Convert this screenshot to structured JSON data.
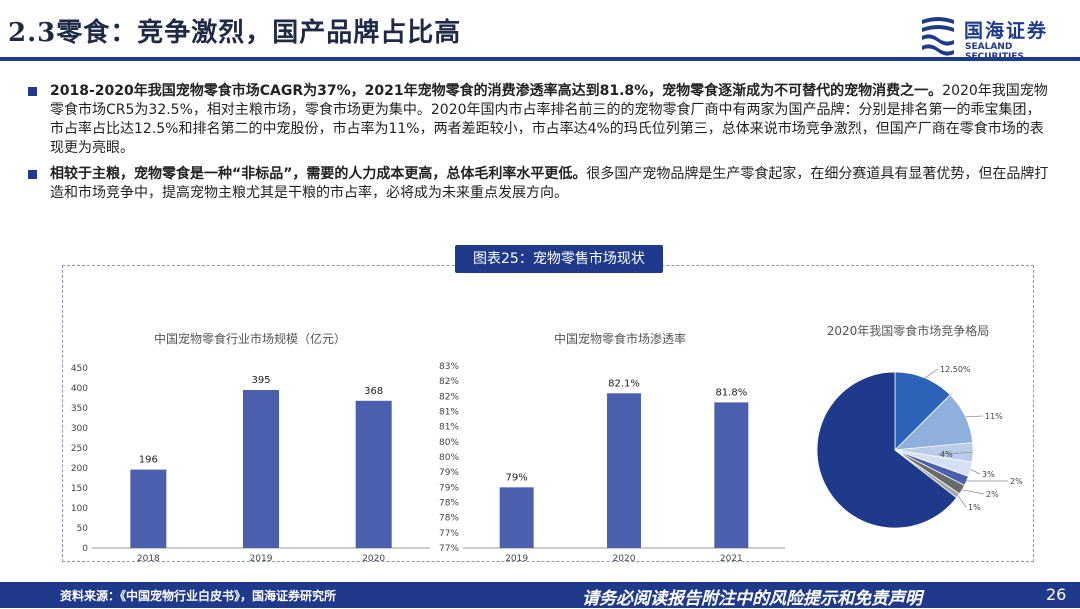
{
  "header": {
    "title": "2.3零食：竞争激烈，国产品牌占比高",
    "logo_name": "国海证券",
    "logo_en": "SEALAND SECURITIES"
  },
  "bullets": [
    {
      "bold": "2018-2020年我国宠物零食市场CAGR为37%，2021年宠物零食的消费渗透率高达到81.8%，宠物零食逐渐成为不可替代的宠物消费之一。",
      "text": "2020年我国宠物零食市场CR5为32.5%，相对主粮市场，零食市场更为集中。2020年国内市占率排名前三的的宠物零食厂商中有两家为国产品牌：分别是排名第一的乖宝集团，市占率占比达12.5%和排名第二的中宠股份，市占率为11%，两者差距较小，市占率达4%的玛氏位列第三，总体来说市场竞争激烈，但国产厂商在零食市场的表现更为亮眼。"
    },
    {
      "bold": "相较于主粮，宠物零食是一种“非标品”，需要的人力成本更高，总体毛利率水平更低。",
      "text": "很多国产宠物品牌是生产零食起家，在细分赛道具有显著优势，但在品牌打造和市场竞争中，提高宠物主粮尤其是干粮的市占率，必将成为未来重点发展方向。"
    }
  ],
  "figure_label": "图表25：宠物零售市场现状",
  "chart_data": [
    {
      "type": "bar",
      "title": "中国宠物零食行业市场规模（亿元）",
      "categories": [
        "2018",
        "2019",
        "2020"
      ],
      "values": [
        196,
        395,
        368
      ],
      "data_labels": [
        "196",
        "395",
        "368"
      ],
      "yticks": [
        "0",
        "50",
        "100",
        "150",
        "200",
        "250",
        "300",
        "350",
        "400",
        "450"
      ],
      "ylim": [
        0,
        450
      ],
      "color": "#4a5fae"
    },
    {
      "type": "bar",
      "title": "中国宠物零食市场渗透率",
      "categories": [
        "2019",
        "2020",
        "2021"
      ],
      "values": [
        79,
        82.1,
        81.8
      ],
      "data_labels": [
        "79%",
        "82.1%",
        "81.8%"
      ],
      "yticks": [
        "77%",
        "77%",
        "78%",
        "78%",
        "79%",
        "79%",
        "80%",
        "80%",
        "81%",
        "81%",
        "82%",
        "82%",
        "83%"
      ],
      "ylim": [
        77,
        83
      ],
      "color": "#4a5fae"
    },
    {
      "type": "pie",
      "title": "2020年我国零食市场竞争格局",
      "slices": [
        {
          "value": 12.5,
          "label": "12.50%",
          "color": "#2a63b8"
        },
        {
          "value": 11,
          "label": "11%",
          "color": "#8fb0dc"
        },
        {
          "value": 4,
          "label": "4%",
          "color": "#b9cdea"
        },
        {
          "value": 3,
          "label": "3%",
          "color": "#d5e1f2"
        },
        {
          "value": 2,
          "label": "2%",
          "color": "#4a5fae"
        },
        {
          "value": 2,
          "label": "2%",
          "color": "#6a6a6a"
        },
        {
          "value": 1,
          "label": "1%",
          "color": "#a6a6a6"
        },
        {
          "value": 64.5,
          "label": "",
          "color": "#1f3a8a"
        }
      ]
    }
  ],
  "footer": {
    "source": "资料来源：《中国宠物行业白皮书》，国海证券研究所",
    "disclaimer": "请务必阅读报告附注中的风险提示和免责声明",
    "page": "26"
  }
}
